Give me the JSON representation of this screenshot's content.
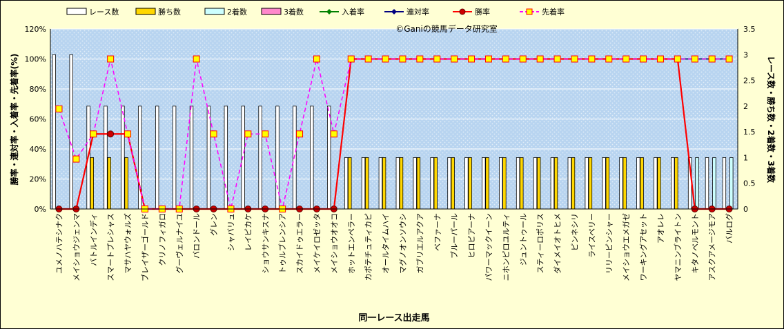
{
  "chart_data": {
    "type": "bar",
    "watermark": "©Ganiの競馬データ研究室",
    "xlabel": "同一レース出走馬",
    "ylabel_left": "勝率・連対率・入着率・先着率(%)",
    "ylabel_right": "レース数・勝ち数・2着数・3着数",
    "left_axis": {
      "min": 0,
      "max": 120,
      "step": 20,
      "tick_labels": [
        "0%",
        "20%",
        "40%",
        "60%",
        "80%",
        "100%",
        "120%"
      ]
    },
    "right_axis": {
      "min": 0,
      "max": 3.5,
      "step": 0.5,
      "tick_labels": [
        "0",
        "0.5",
        "1",
        "1.5",
        "2",
        "2.5",
        "3",
        "3.5"
      ]
    },
    "grid": true,
    "legend_position": "top",
    "categories": [
      "ユメノハテシナク",
      "メイショウジェンマ",
      "バトルインディ",
      "スマートプレシャス",
      "マサハヤウォルズ",
      "ブレイザーゴールド",
      "クリノフィガロ",
      "グーヴェルナイユ",
      "バロンドール",
      "グレン",
      "シャバリュ",
      "レイピカケ",
      "ショウサンキスナ",
      "トゥルブレンシア",
      "スカイドゥエラー",
      "メイケイロゼッタ",
      "メイショウオオコ",
      "ホットエンペラー",
      "カポテチュティカピ",
      "オールタイムハイ",
      "マグノオンソウシ",
      "ガブリエルアクア",
      "ベファーナ",
      "ブルーパール",
      "ヒロピアーナ",
      "パワーマックイーン",
      "ニホンピロユルティ",
      "ジュントゥール",
      "スティーロポリス",
      "ダイメイオトヒメ",
      "ピンネシリ",
      "ライスベリー",
      "リリーピンシャー",
      "メイショウエメガゼ",
      "ワーキングアセット",
      "アオレレ",
      "ヤマニンブライトン",
      "キタノベルモント",
      "アスクアメージモア",
      "バルログ"
    ],
    "series": [
      {
        "name": "レース数",
        "axis": "right",
        "color": "#ffffff",
        "values": [
          3,
          3,
          2,
          2,
          2,
          2,
          2,
          2,
          2,
          2,
          2,
          2,
          2,
          2,
          2,
          2,
          2,
          1,
          1,
          1,
          1,
          1,
          1,
          1,
          1,
          1,
          1,
          1,
          1,
          1,
          1,
          1,
          1,
          1,
          1,
          1,
          1,
          1,
          1,
          1
        ]
      },
      {
        "name": "勝ち数",
        "axis": "right",
        "color": "#ffd700",
        "values": [
          0,
          0,
          1,
          1,
          1,
          0,
          0,
          0,
          0,
          0,
          0,
          0,
          0,
          0,
          0,
          0,
          0,
          1,
          1,
          1,
          1,
          1,
          1,
          1,
          1,
          1,
          1,
          1,
          1,
          1,
          1,
          1,
          1,
          1,
          1,
          1,
          1,
          0,
          0,
          0
        ]
      },
      {
        "name": "2着数",
        "axis": "right",
        "color": "#ccffff",
        "values": [
          0,
          0,
          0,
          0,
          0,
          0,
          0,
          0,
          0,
          0,
          0,
          0,
          0,
          0,
          0,
          0,
          0,
          0,
          0,
          0,
          0,
          0,
          0,
          0,
          0,
          0,
          0,
          0,
          0,
          0,
          0,
          0,
          0,
          0,
          0,
          0,
          0,
          1,
          1,
          1
        ]
      },
      {
        "name": "3着数",
        "axis": "right",
        "color": "#ff88cc",
        "values": [
          0,
          0,
          0,
          0,
          0,
          0,
          0,
          0,
          0,
          0,
          0,
          0,
          0,
          0,
          0,
          0,
          0,
          0,
          0,
          0,
          0,
          0,
          0,
          0,
          0,
          0,
          0,
          0,
          0,
          0,
          0,
          0,
          0,
          0,
          0,
          0,
          0,
          0,
          0,
          0
        ]
      },
      {
        "name": "入着率",
        "axis": "left",
        "color": "#008000",
        "values": [
          0,
          0,
          50,
          50,
          50,
          0,
          0,
          0,
          0,
          0,
          0,
          0,
          0,
          0,
          0,
          0,
          0,
          100,
          100,
          100,
          100,
          100,
          100,
          100,
          100,
          100,
          100,
          100,
          100,
          100,
          100,
          100,
          100,
          100,
          100,
          100,
          100,
          100,
          100,
          100
        ]
      },
      {
        "name": "連対率",
        "axis": "left",
        "color": "#000080",
        "values": [
          0,
          0,
          50,
          50,
          50,
          0,
          0,
          0,
          0,
          0,
          0,
          0,
          0,
          0,
          0,
          0,
          0,
          100,
          100,
          100,
          100,
          100,
          100,
          100,
          100,
          100,
          100,
          100,
          100,
          100,
          100,
          100,
          100,
          100,
          100,
          100,
          100,
          100,
          100,
          100
        ]
      },
      {
        "name": "勝率",
        "axis": "left",
        "color": "#ff0000",
        "values": [
          0,
          0,
          50,
          50,
          50,
          0,
          0,
          0,
          0,
          0,
          0,
          0,
          0,
          0,
          0,
          0,
          0,
          100,
          100,
          100,
          100,
          100,
          100,
          100,
          100,
          100,
          100,
          100,
          100,
          100,
          100,
          100,
          100,
          100,
          100,
          100,
          100,
          0,
          0,
          0
        ]
      },
      {
        "name": "先着率",
        "axis": "left",
        "color": "#ff00ff",
        "marker_fill": "#ffff00",
        "marker_edge": "#ff0000",
        "values": [
          66.7,
          33.3,
          50,
          100,
          50,
          0,
          0,
          0,
          100,
          50,
          0,
          50,
          50,
          0,
          50,
          100,
          50,
          100,
          100,
          100,
          100,
          100,
          100,
          100,
          100,
          100,
          100,
          100,
          100,
          100,
          100,
          100,
          100,
          100,
          100,
          100,
          100,
          100,
          100,
          100
        ]
      }
    ]
  }
}
